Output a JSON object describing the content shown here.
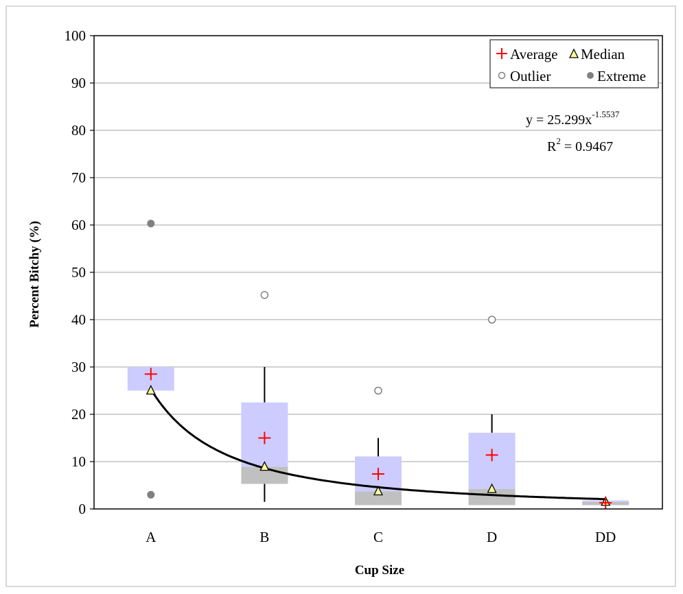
{
  "chart_data": {
    "type": "box",
    "xlabel": "Cup Size",
    "ylabel": "Percent Bitchy (%)",
    "ylim": [
      0,
      100
    ],
    "y_ticks": [
      "0",
      "10",
      "20",
      "30",
      "40",
      "50",
      "60",
      "70",
      "80",
      "90",
      "100"
    ],
    "grid": "horizontal",
    "categories": [
      "A",
      "B",
      "C",
      "D",
      "DD"
    ],
    "boxes": [
      {
        "category": "A",
        "min": 25,
        "q1": 25,
        "median": 25,
        "q3": 30,
        "max": 30,
        "average": 28.5,
        "outliers": [],
        "extremes": [
          60.3,
          3
        ]
      },
      {
        "category": "B",
        "min": 1.5,
        "q1": 5.3,
        "median": 8.9,
        "q3": 22.5,
        "max": 30,
        "average": 15,
        "outliers": [
          45.2
        ],
        "extremes": []
      },
      {
        "category": "C",
        "min": 0.8,
        "q1": 0.8,
        "median": 3.7,
        "q3": 11.1,
        "max": 15,
        "average": 7.4,
        "outliers": [
          25
        ],
        "extremes": []
      },
      {
        "category": "D",
        "min": 0.8,
        "q1": 0.8,
        "median": 4.2,
        "q3": 16.1,
        "max": 20,
        "average": 11.4,
        "outliers": [
          40
        ],
        "extremes": []
      },
      {
        "category": "DD",
        "min": 0.8,
        "q1": 0.8,
        "median": 1.5,
        "q3": 1.8,
        "max": 1.8,
        "average": 1.3,
        "outliers": [],
        "extremes": []
      }
    ],
    "trendline": {
      "type": "power",
      "a": 25.299,
      "b": -1.5537
    },
    "legend": {
      "position": "top-right",
      "entries": [
        {
          "label": "Average",
          "marker": "plus"
        },
        {
          "label": "Median",
          "marker": "triangle"
        },
        {
          "label": "Outlier",
          "marker": "open-circle"
        },
        {
          "label": "Extreme",
          "marker": "filled-circle"
        }
      ]
    },
    "equation": {
      "line1_base": "y = 25.299x",
      "line1_exp": "-1.5537",
      "line2_base": "R",
      "line2_exp": "2",
      "line2_rest": " = 0.9467"
    },
    "colors": {
      "box_upper": "#ccccff",
      "box_lower": "#c0c0c0",
      "average": "#ff0000",
      "median_fill": "#ffff99",
      "outlier": "#808080",
      "extreme": "#808080",
      "trendline": "#000000",
      "grid": "#b3b3b3"
    }
  }
}
